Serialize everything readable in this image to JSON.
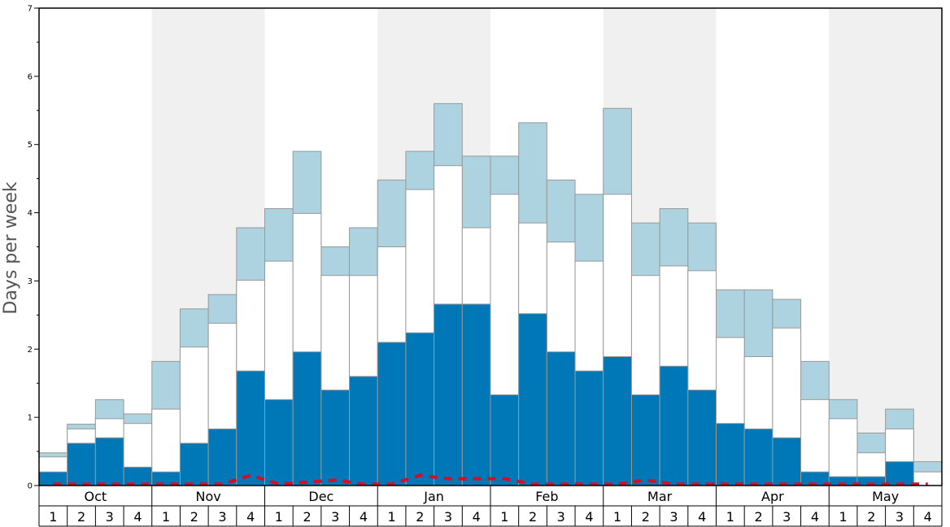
{
  "chart_data": {
    "type": "bar",
    "ylabel": "Days per week",
    "ylim": [
      0,
      7
    ],
    "yticks": [
      0,
      1,
      2,
      3,
      4,
      5,
      6,
      7
    ],
    "months": [
      "Oct",
      "Nov",
      "Dec",
      "Jan",
      "Feb",
      "Mar",
      "Apr",
      "May"
    ],
    "week_labels": [
      "1",
      "2",
      "3",
      "4"
    ],
    "shaded_months": [
      "Nov",
      "Jan",
      "Mar",
      "May"
    ],
    "colors": {
      "bottom": "#0077b6",
      "middle": "#ffffff",
      "top": "#add3e0",
      "shade": "#f0f0f0",
      "line": "#d0102a",
      "bar_edge": "#999999"
    },
    "series": [
      {
        "values": [
          0.2,
          0.62,
          0.7,
          0.27,
          0.2,
          0.62,
          0.83,
          1.68,
          1.26,
          1.96,
          1.4,
          1.6,
          2.1,
          2.24,
          2.66,
          2.66,
          1.33,
          2.52,
          1.96,
          1.68,
          1.89,
          1.33,
          1.75,
          1.4,
          0.91,
          0.83,
          0.7,
          0.2,
          0.13,
          0.13,
          0.35,
          0.0
        ]
      },
      {
        "values": [
          0.42,
          0.83,
          0.98,
          0.91,
          1.12,
          2.03,
          2.38,
          3.01,
          3.29,
          3.99,
          3.08,
          3.08,
          3.5,
          4.34,
          4.69,
          3.78,
          4.27,
          3.85,
          3.57,
          3.29,
          4.27,
          3.08,
          3.22,
          3.15,
          2.17,
          1.89,
          2.31,
          1.26,
          0.98,
          0.48,
          0.83,
          0.2
        ]
      },
      {
        "values": [
          0.48,
          0.9,
          1.26,
          1.05,
          1.82,
          2.59,
          2.8,
          3.78,
          4.06,
          4.9,
          3.5,
          3.78,
          4.48,
          4.9,
          5.6,
          4.83,
          4.83,
          5.32,
          4.48,
          4.27,
          5.53,
          3.85,
          4.06,
          3.85,
          2.87,
          2.87,
          2.73,
          1.82,
          1.26,
          0.77,
          1.12,
          0.35
        ]
      },
      {
        "values": [
          0.02,
          0.02,
          0.02,
          0.02,
          0.02,
          0.02,
          0.02,
          0.15,
          0.02,
          0.05,
          0.08,
          0.02,
          0.02,
          0.15,
          0.1,
          0.1,
          0.1,
          0.02,
          0.02,
          0.02,
          0.02,
          0.08,
          0.02,
          0.02,
          0.02,
          0.02,
          0.02,
          0.02,
          0.02,
          0.02,
          0.02,
          0.02
        ]
      }
    ]
  }
}
